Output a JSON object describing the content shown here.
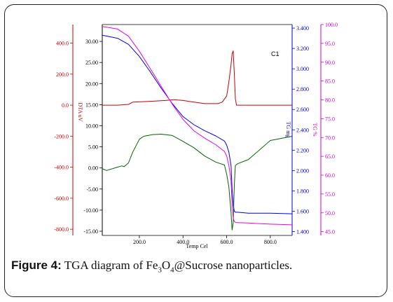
{
  "chart_data": {
    "type": "line",
    "annotation": "C1",
    "x_axis": {
      "label": "Temp Cel",
      "range": [
        30,
        900
      ],
      "ticks": [
        "200.0",
        "400.0",
        "600.0",
        "800.0"
      ],
      "tick_values": [
        200,
        400,
        600,
        800
      ]
    },
    "y_axes": [
      {
        "id": "dta",
        "label": "DTA uV",
        "color": "#cc0000",
        "range": [
          -840,
          520
        ],
        "ticks": [
          "400.0",
          "200.0",
          "0.0",
          "-200.0",
          "-400.0",
          "-600.0",
          "-800.0"
        ],
        "tick_values": [
          400,
          200,
          0,
          -200,
          -400,
          -600,
          -800
        ]
      },
      {
        "id": "dtg",
        "label": "",
        "color": "#000000",
        "range": [
          -16,
          34
        ],
        "ticks": [
          "30.00",
          "25.00",
          "20.00",
          "15.00",
          "10.00",
          "5.00",
          "0.00",
          "-5.00",
          "-10.00",
          "-15.00"
        ],
        "tick_values": [
          30,
          25,
          20,
          15,
          10,
          5,
          0,
          -5,
          -10,
          -15
        ]
      },
      {
        "id": "tg",
        "label": "TG mg",
        "color": "#0000cc",
        "range": [
          1.362,
          3.435
        ],
        "ticks": [
          "3.400",
          "3.200",
          "3.000",
          "2.800",
          "2.600",
          "2.400",
          "2.200",
          "2.000",
          "1.800",
          "1.600",
          "1.400"
        ],
        "tick_values": [
          3.4,
          3.2,
          3.0,
          2.8,
          2.6,
          2.4,
          2.2,
          2.0,
          1.8,
          1.6,
          1.4
        ]
      },
      {
        "id": "tgp",
        "label": "TG %",
        "color": "#cc00cc",
        "range": [
          44.0,
          100.0
        ],
        "ticks": [
          "100.0",
          "95.0",
          "90.0",
          "85.0",
          "80.0",
          "75.0",
          "70.0",
          "65.0",
          "60.0",
          "55.0",
          "50.0",
          "45.0"
        ],
        "tick_values": [
          100,
          95,
          90,
          85,
          80,
          75,
          70,
          65,
          60,
          55,
          50,
          45
        ]
      }
    ],
    "series": [
      {
        "axis": "dta",
        "color": "#cc0000",
        "x": [
          30,
          100,
          150,
          170,
          250,
          320,
          360,
          400,
          450,
          500,
          560,
          580,
          600,
          610,
          620,
          625,
          630,
          635,
          640,
          645,
          650,
          700,
          800,
          900
        ],
        "y": [
          0,
          0,
          5,
          20,
          25,
          30,
          35,
          30,
          20,
          10,
          10,
          20,
          60,
          150,
          260,
          330,
          350,
          200,
          40,
          0,
          0,
          0,
          0,
          0
        ]
      },
      {
        "axis": "dtg",
        "color": "#006600",
        "x": [
          30,
          50,
          100,
          120,
          130,
          150,
          170,
          200,
          220,
          260,
          300,
          350,
          400,
          450,
          500,
          550,
          590,
          600,
          610,
          620,
          625,
          630,
          635,
          640,
          650,
          700,
          800,
          900
        ],
        "y": [
          -0.2,
          -0.6,
          0.2,
          0.5,
          0.3,
          1.2,
          3.8,
          6.8,
          7.5,
          7.9,
          8.0,
          7.7,
          6.3,
          4.8,
          2.8,
          1.4,
          0.7,
          -1.5,
          -4.5,
          -10.5,
          -14.7,
          -13.0,
          -4.0,
          0.6,
          1.0,
          2.0,
          6.5,
          7.5
        ]
      },
      {
        "axis": "tg",
        "color": "#0000ee",
        "x": [
          30,
          100,
          150,
          200,
          250,
          300,
          350,
          400,
          450,
          500,
          550,
          590,
          600,
          610,
          620,
          625,
          630,
          635,
          640,
          645,
          650,
          700,
          800,
          900
        ],
        "y": [
          3.33,
          3.3,
          3.24,
          3.12,
          2.97,
          2.81,
          2.66,
          2.53,
          2.45,
          2.39,
          2.34,
          2.29,
          2.25,
          2.18,
          2.05,
          1.82,
          1.66,
          1.6,
          1.59,
          1.59,
          1.59,
          1.58,
          1.58,
          1.575
        ]
      },
      {
        "axis": "tgp",
        "color": "#ee00ee",
        "x": [
          30,
          100,
          150,
          200,
          250,
          300,
          350,
          400,
          450,
          500,
          550,
          590,
          600,
          610,
          620,
          625,
          630,
          635,
          640,
          645,
          650,
          700,
          800,
          900
        ],
        "y": [
          99.5,
          98.8,
          96.9,
          92.9,
          88.3,
          83.6,
          78.9,
          74.8,
          71.8,
          69.8,
          68.1,
          66.3,
          65.1,
          62.6,
          58.6,
          52.0,
          48.6,
          47.7,
          47.5,
          47.4,
          47.4,
          47.3,
          47.0,
          46.8
        ]
      }
    ]
  },
  "caption": {
    "label": "Figure 4:",
    "text_before": "TGA diagram of Fe",
    "sub1": "3",
    "mid": "O",
    "sub2": "4",
    "text_after": "@Sucrose nanoparticles."
  }
}
